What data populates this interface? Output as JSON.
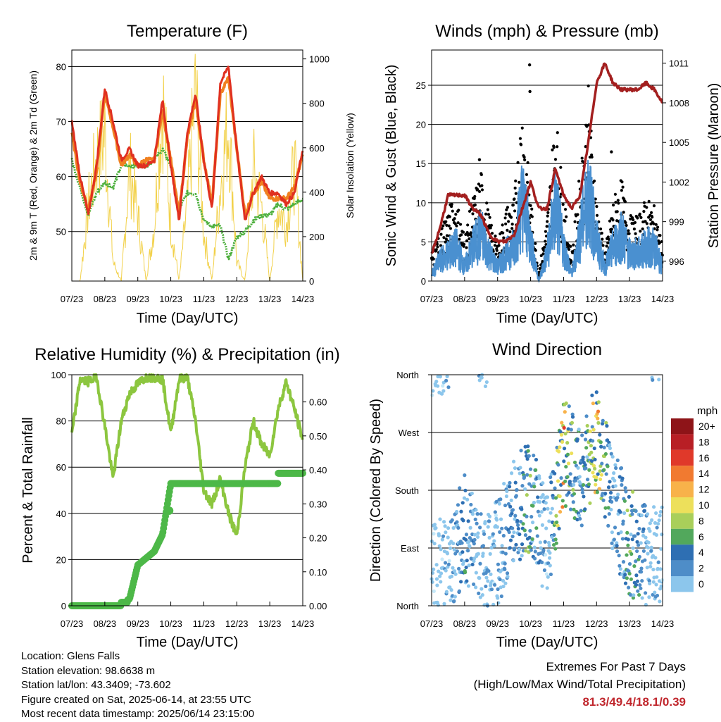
{
  "colors": {
    "temp2m": "#e03020",
    "temp9m": "#f08020",
    "dewpoint": "#4caf3c",
    "solar": "#f2d14a",
    "wind": "#4a90d0",
    "gust": "#000000",
    "pressure": "#a31f1f",
    "rh": "#8cc63f",
    "precip": "#4db848",
    "extremes": "#c0272d"
  },
  "time_ticks": [
    "07/23",
    "08/23",
    "09/23",
    "10/23",
    "11/23",
    "12/23",
    "13/23",
    "14/23"
  ],
  "info": {
    "location": "Location: Glens Falls",
    "elevation": "Station elevation: 98.6638 m",
    "latlon": "Station lat/lon: 43.3409; -73.602",
    "created": "Figure created on Sat, 2025-06-14, at 23:55 UTC",
    "recent": "Most recent data timestamp: 2025/06/14 23:15:00"
  },
  "extremes": {
    "title": "Extremes For Past 7 Days",
    "subtitle": "(High/Low/Max Wind/Total Precipitation)",
    "values": "81.3/49.4/18.1/0.39"
  },
  "chart_data": [
    {
      "type": "line",
      "title": "Temperature (F)",
      "xlabel": "Time (Day/UTC)",
      "ylabel": "2m & 9m T (Red, Orange) & 2m Td (Green)",
      "y2label": "Solar Insolation (Yellow)",
      "ylim": [
        41,
        83
      ],
      "y2lim": [
        0,
        1040
      ],
      "yticks": [
        50,
        60,
        70,
        80
      ],
      "y2ticks": [
        0,
        200,
        400,
        600,
        800,
        1000
      ],
      "x": [
        0,
        0.25,
        0.5,
        0.75,
        1,
        1.25,
        1.5,
        1.75,
        2,
        2.25,
        2.5,
        2.75,
        3,
        3.25,
        3.5,
        3.75,
        4,
        4.25,
        4.5,
        4.75,
        5,
        5.25,
        5.5,
        5.75,
        6,
        6.25,
        6.5,
        6.75,
        7
      ],
      "series": [
        {
          "name": "2m T",
          "values": [
            70,
            60,
            53,
            62,
            76,
            70,
            63,
            65,
            62,
            62,
            63,
            74,
            62,
            52,
            68,
            75,
            63,
            54,
            77,
            80,
            65,
            52,
            57,
            60,
            57,
            57,
            55,
            57,
            65
          ]
        },
        {
          "name": "9m T",
          "values": [
            68,
            59,
            54,
            61,
            75,
            69,
            62,
            64,
            62,
            63,
            63,
            72,
            63,
            53,
            67,
            74,
            63,
            55,
            75,
            78,
            65,
            53,
            57,
            59,
            56,
            56,
            56,
            58,
            64
          ]
        },
        {
          "name": "2m Td",
          "values": [
            63,
            58,
            53,
            57,
            59,
            58,
            62,
            62,
            62,
            62,
            63,
            65,
            62,
            54,
            57,
            57,
            52,
            51,
            51,
            45,
            49,
            50,
            52,
            53,
            53,
            55,
            54,
            55,
            56
          ]
        },
        {
          "name": "Solar",
          "values": [
            0,
            0,
            400,
            650,
            780,
            100,
            0,
            600,
            350,
            0,
            300,
            980,
            300,
            0,
            400,
            1000,
            250,
            0,
            500,
            850,
            100,
            0,
            600,
            400,
            0,
            400,
            300,
            600,
            0
          ]
        }
      ]
    },
    {
      "type": "scatter",
      "title": "Winds (mph) & Pressure (mb)",
      "xlabel": "Time (Day/UTC)",
      "ylabel": "Sonic Wind & Gust (Blue, Black)",
      "y2label": "Station Pressure (Maroon)",
      "ylim": [
        0,
        29.5
      ],
      "y2lim": [
        994.5,
        1012
      ],
      "yticks": [
        0,
        5,
        10,
        15,
        20,
        25
      ],
      "y2ticks": [
        996,
        999,
        1002,
        1005,
        1008,
        1011
      ],
      "x": [
        0,
        0.25,
        0.5,
        0.75,
        1,
        1.25,
        1.5,
        1.75,
        2,
        2.25,
        2.5,
        2.75,
        3,
        3.25,
        3.5,
        3.75,
        4,
        4.25,
        4.5,
        4.75,
        5,
        5.25,
        5.5,
        5.75,
        6,
        6.25,
        6.5,
        6.75,
        7
      ],
      "series": [
        {
          "name": "Wind",
          "values": [
            1,
            3,
            4,
            5,
            2,
            5,
            7,
            4,
            2,
            4,
            5,
            12,
            6,
            0,
            4,
            11,
            5,
            1,
            7,
            13,
            6,
            2,
            5,
            7,
            4,
            4,
            5,
            5,
            2
          ]
        },
        {
          "name": "Gust",
          "values": [
            3,
            6,
            8,
            9,
            5,
            9,
            12,
            7,
            4,
            8,
            9,
            20,
            9,
            1,
            7,
            19,
            9,
            3,
            12,
            21,
            9,
            3,
            9,
            11,
            7,
            7,
            9,
            8,
            4
          ]
        },
        {
          "name": "Pressure",
          "values": [
            996.5,
            998.5,
            1001,
            1001,
            1001,
            1000,
            999.5,
            998,
            997.5,
            997.5,
            998,
            1000,
            1002,
            1000,
            1000,
            1003,
            1001,
            1000,
            1001,
            1005,
            1009.5,
            1011,
            1009.5,
            1009,
            1009,
            1009,
            1009.5,
            1009,
            1008
          ]
        }
      ]
    },
    {
      "type": "line",
      "title": "Relative Humidity (%) & Precipitation (in)",
      "xlabel": "Time (Day/UTC)",
      "ylabel": "Percent & Total Rainfall",
      "ylim": [
        0,
        100
      ],
      "y2lim": [
        0,
        0.68
      ],
      "yticks": [
        0,
        20,
        40,
        60,
        80,
        100
      ],
      "y2ticks": [
        "0.00",
        "0.10",
        "0.20",
        "0.30",
        "0.40",
        "0.50",
        "0.60"
      ],
      "x": [
        0,
        0.25,
        0.5,
        0.75,
        1,
        1.25,
        1.5,
        1.75,
        2,
        2.25,
        2.5,
        2.75,
        3,
        3.25,
        3.5,
        3.75,
        4,
        4.25,
        4.5,
        4.75,
        5,
        5.25,
        5.5,
        5.75,
        6,
        6.25,
        6.5,
        6.75,
        7
      ],
      "series": [
        {
          "name": "RH",
          "values": [
            74,
            98,
            97,
            99,
            78,
            55,
            80,
            92,
            96,
            99,
            99,
            98,
            75,
            98,
            99,
            80,
            50,
            44,
            55,
            40,
            30,
            60,
            80,
            70,
            65,
            85,
            97,
            85,
            72
          ]
        },
        {
          "name": "Precip",
          "values": [
            0,
            0,
            0,
            0,
            0,
            0,
            0.01,
            0.02,
            0.12,
            0.14,
            0.16,
            0.21,
            0.36,
            0.36,
            0.36,
            0.36,
            0.36,
            0.36,
            0.36,
            0.36,
            0.36,
            0.36,
            0.36,
            0.36,
            0.36,
            0.39,
            0.39,
            0.39,
            0.39
          ]
        }
      ]
    },
    {
      "type": "scatter",
      "title": "Wind Direction",
      "xlabel": "Time (Day/UTC)",
      "ylabel": "Direction (Colored By Speed)",
      "ylim": [
        0,
        360
      ],
      "yticks": [
        "North",
        "East",
        "South",
        "West",
        "North"
      ],
      "colorbar_title": "mph",
      "colorbar_labels": [
        "0",
        "2",
        "4",
        "6",
        "8",
        "10",
        "12",
        "14",
        "16",
        "18",
        "20+"
      ],
      "colorbar_colors": [
        "#c6e9f9",
        "#8cc6ec",
        "#4e8dc8",
        "#2e6fb3",
        "#52a85c",
        "#a9cf5a",
        "#ede05b",
        "#f8b24a",
        "#f17a30",
        "#e0392a",
        "#b81f25",
        "#8e1418"
      ],
      "x": [
        0,
        0.5,
        1,
        1.5,
        2,
        2.5,
        3,
        3.5,
        4,
        4.5,
        5,
        5.5,
        6,
        6.5,
        7
      ],
      "series": [
        {
          "name": "Direction",
          "values": [
            40,
            60,
            120,
            60,
            80,
            150,
            170,
            90,
            240,
            200,
            260,
            160,
            100,
            80,
            70
          ]
        },
        {
          "name": "Speed",
          "values": [
            2,
            3,
            6,
            3,
            3,
            5,
            8,
            2,
            14,
            5,
            13,
            3,
            8,
            4,
            2
          ]
        }
      ]
    }
  ]
}
